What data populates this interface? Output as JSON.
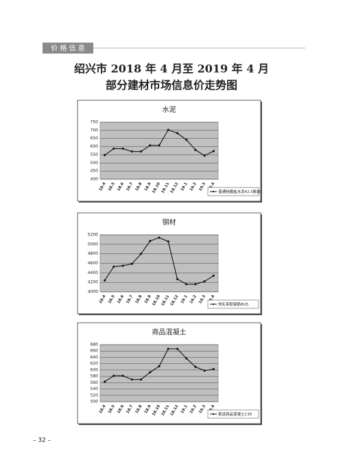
{
  "header": {
    "section": "价 格 信 息"
  },
  "title": {
    "line1": "绍兴市 2018 年 4 月至 2019 年 4 月",
    "line2": "部分建材市场信息价走势图"
  },
  "chart_data": [
    {
      "type": "line",
      "title": "水泥",
      "categories": [
        "18.4",
        "18.5",
        "18.6",
        "18.7",
        "18.8",
        "18.9",
        "18.10",
        "18.11",
        "18.12",
        "19.1",
        "19.2",
        "19.3",
        "19.4"
      ],
      "series": [
        {
          "name": "普通硅酸盐水泥42.5散装",
          "color": "#111111",
          "values": [
            548,
            588,
            588,
            570,
            570,
            608,
            608,
            703,
            683,
            643,
            580,
            545,
            573
          ]
        }
      ],
      "ylim": [
        400,
        750
      ],
      "yticks": [
        400,
        450,
        500,
        550,
        600,
        650,
        700,
        750
      ],
      "grid": true,
      "legend": "bottom-right"
    },
    {
      "type": "line",
      "title": "钢材",
      "categories": [
        "18.4",
        "18.5",
        "18.6",
        "18.7",
        "18.8",
        "18.9",
        "18.10",
        "18.11",
        "18.12",
        "19.1",
        "19.2",
        "19.3",
        "19.4"
      ],
      "series": [
        {
          "name": "热轧带肋钢筋Φ25",
          "color": "#111111",
          "values": [
            4240,
            4530,
            4550,
            4590,
            4800,
            5070,
            5140,
            5060,
            4270,
            4160,
            4160,
            4220,
            4340
          ]
        }
      ],
      "ylim": [
        4000,
        5200
      ],
      "yticks": [
        4000,
        4200,
        4400,
        4600,
        4800,
        5000,
        5200
      ],
      "grid": true,
      "legend": "bottom-right"
    },
    {
      "type": "line",
      "title": "商品混凝土",
      "categories": [
        "18.4",
        "18.5",
        "18.6",
        "18.7",
        "18.8",
        "18.9",
        "18.10",
        "18.11",
        "18.12",
        "19.1",
        "19.2",
        "19.3",
        "19.4"
      ],
      "series": [
        {
          "name": "泵送商品混凝土C35",
          "color": "#111111",
          "values": [
            563,
            582,
            582,
            570,
            570,
            593,
            612,
            667,
            667,
            637,
            610,
            598,
            603
          ]
        }
      ],
      "ylim": [
        500,
        680
      ],
      "yticks": [
        500,
        520,
        540,
        560,
        580,
        600,
        620,
        640,
        660,
        680
      ],
      "grid": true,
      "legend": "bottom-right"
    }
  ],
  "page_number": "– 32 –"
}
